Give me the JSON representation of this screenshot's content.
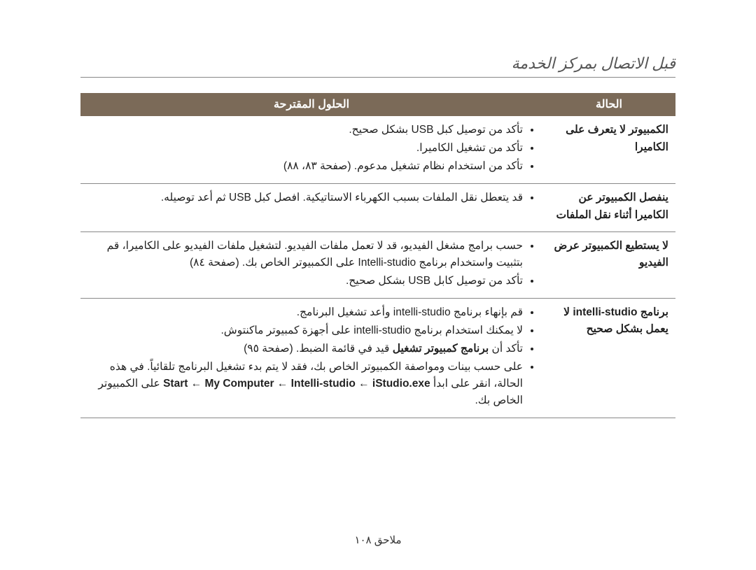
{
  "title": "قبل الاتصال بمركز الخدمة",
  "header": {
    "case": "الحالة",
    "solution": "الحلول المقترحة"
  },
  "rows": [
    {
      "case": "الكمبيوتر لا يتعرف على الكاميرا",
      "bullets": [
        "تأكد من توصيل كبل USB بشكل صحيح.",
        "تأكد من تشغيل الكاميرا.",
        "تأكد من استخدام نظام تشغيل مدعوم. (صفحة ٨٣، ٨٨)"
      ]
    },
    {
      "case": "ينفصل الكمبيوتر عن الكاميرا أثناء نقل الملفات",
      "bullets": [
        "قد يتعطل نقل الملفات بسبب الكهرباء الاستاتيكية. افصل كبل USB ثم أعد توصيله."
      ]
    },
    {
      "case": "لا يستطيع الكمبيوتر عرض الفيديو",
      "bullets": [
        "حسب برامج مشغل الفيديو، قد لا تعمل ملفات الفيديو. لتشغيل ملفات الفيديو على الكاميرا، قم بتثبيت واستخدام برنامج Intelli-studio على الكمبيوتر الخاص بك. (صفحة ٨٤)",
        "تأكد من توصيل كابل USB بشكل صحيح."
      ]
    },
    {
      "case": "برنامج intelli-studio لا يعمل بشكل صحيح",
      "bullets": [
        "قم بإنهاء برنامج intelli-studio وأعد تشغيل البرنامج.",
        "لا يمكنك استخدام برنامج intelli-studio على أجهزة كمبيوتر ماكنتوش.",
        "تأكد أن <b>برنامج كمبيوتر تشغيل</b> قيد في قائمة الضبط. (صفحة ٩٥)",
        "على حسب بينات ومواصفة الكمبيوتر الخاص بك، فقد لا يتم بدء تشغيل البرنامج تلقائياً. في هذه الحالة، انقر على ابدأ <b>Start ← My Computer ← Intelli-studio ← iStudio.exe</b> على الكمبيوتر الخاص بك."
      ]
    }
  ],
  "footer": "ملاحق  ١٠٨"
}
